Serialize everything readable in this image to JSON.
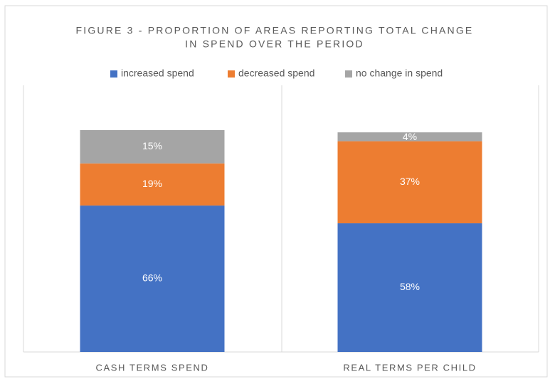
{
  "chart_data": {
    "type": "stacked_bar",
    "title": [
      "FIGURE 3 - PROPORTION OF AREAS REPORTING TOTAL CHANGE",
      "IN SPEND OVER THE PERIOD"
    ],
    "categories": [
      "CASH TERMS SPEND",
      "REAL TERMS PER CHILD"
    ],
    "series": [
      {
        "name": "increased spend",
        "color": "#4472c4",
        "values": [
          66,
          58
        ],
        "value_labels": [
          "66%",
          "58%"
        ]
      },
      {
        "name": "decreased spend",
        "color": "#ed7d31",
        "values": [
          19,
          37
        ],
        "value_labels": [
          "19%",
          "37%"
        ]
      },
      {
        "name": "no change in spend",
        "color": "#a5a5a5",
        "values": [
          15,
          4
        ],
        "value_labels": [
          "15%",
          "4%"
        ]
      }
    ],
    "legend": "top"
  }
}
